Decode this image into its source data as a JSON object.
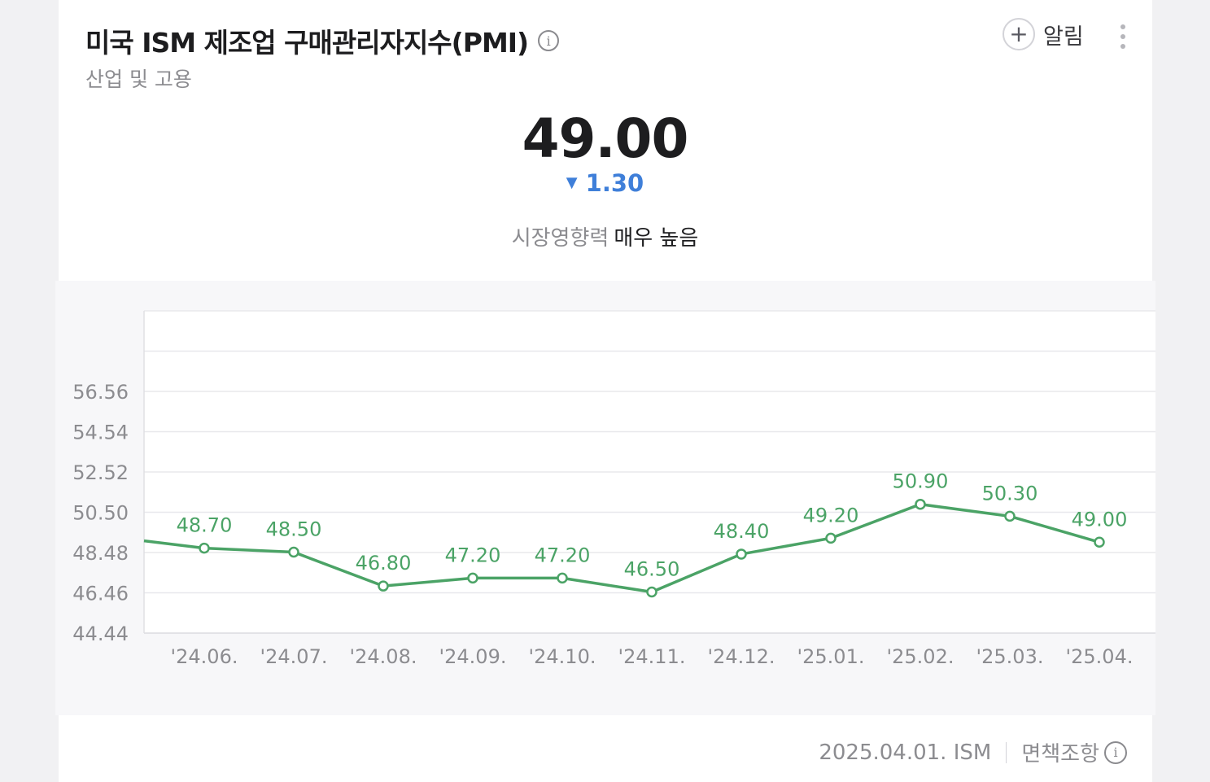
{
  "header": {
    "title": "미국 ISM 제조업 구매관리자지수(PMI)",
    "subtitle": "산업 및 고용",
    "alarm_label": "알림"
  },
  "summary": {
    "value": "49.00",
    "change": "1.30",
    "change_direction": "down",
    "impact_label": "시장영향력",
    "impact_value": "매우 높음"
  },
  "footer": {
    "source": "2025.04.01. ISM",
    "disclaimer_label": "면책조항"
  },
  "colors": {
    "line": "#4ba366",
    "change_down": "#3f7fd9"
  },
  "chart_data": {
    "type": "line",
    "categories": [
      "'24.06.",
      "'24.07.",
      "'24.08.",
      "'24.09.",
      "'24.10.",
      "'24.11.",
      "'24.12.",
      "'25.01.",
      "'25.02.",
      "'25.03.",
      "'25.04."
    ],
    "values": [
      48.7,
      48.5,
      46.8,
      47.2,
      47.2,
      46.5,
      48.4,
      49.2,
      50.9,
      50.3,
      49.0
    ],
    "data_labels": [
      "48.70",
      "48.50",
      "46.80",
      "47.20",
      "47.20",
      "46.50",
      "48.40",
      "49.20",
      "50.90",
      "50.30",
      "49.00"
    ],
    "yticks": [
      "44.44",
      "46.46",
      "48.48",
      "50.50",
      "52.52",
      "54.54",
      "56.56"
    ],
    "ylim": [
      44.44,
      60.6
    ],
    "grid": true,
    "line_color": "#4ba366"
  }
}
